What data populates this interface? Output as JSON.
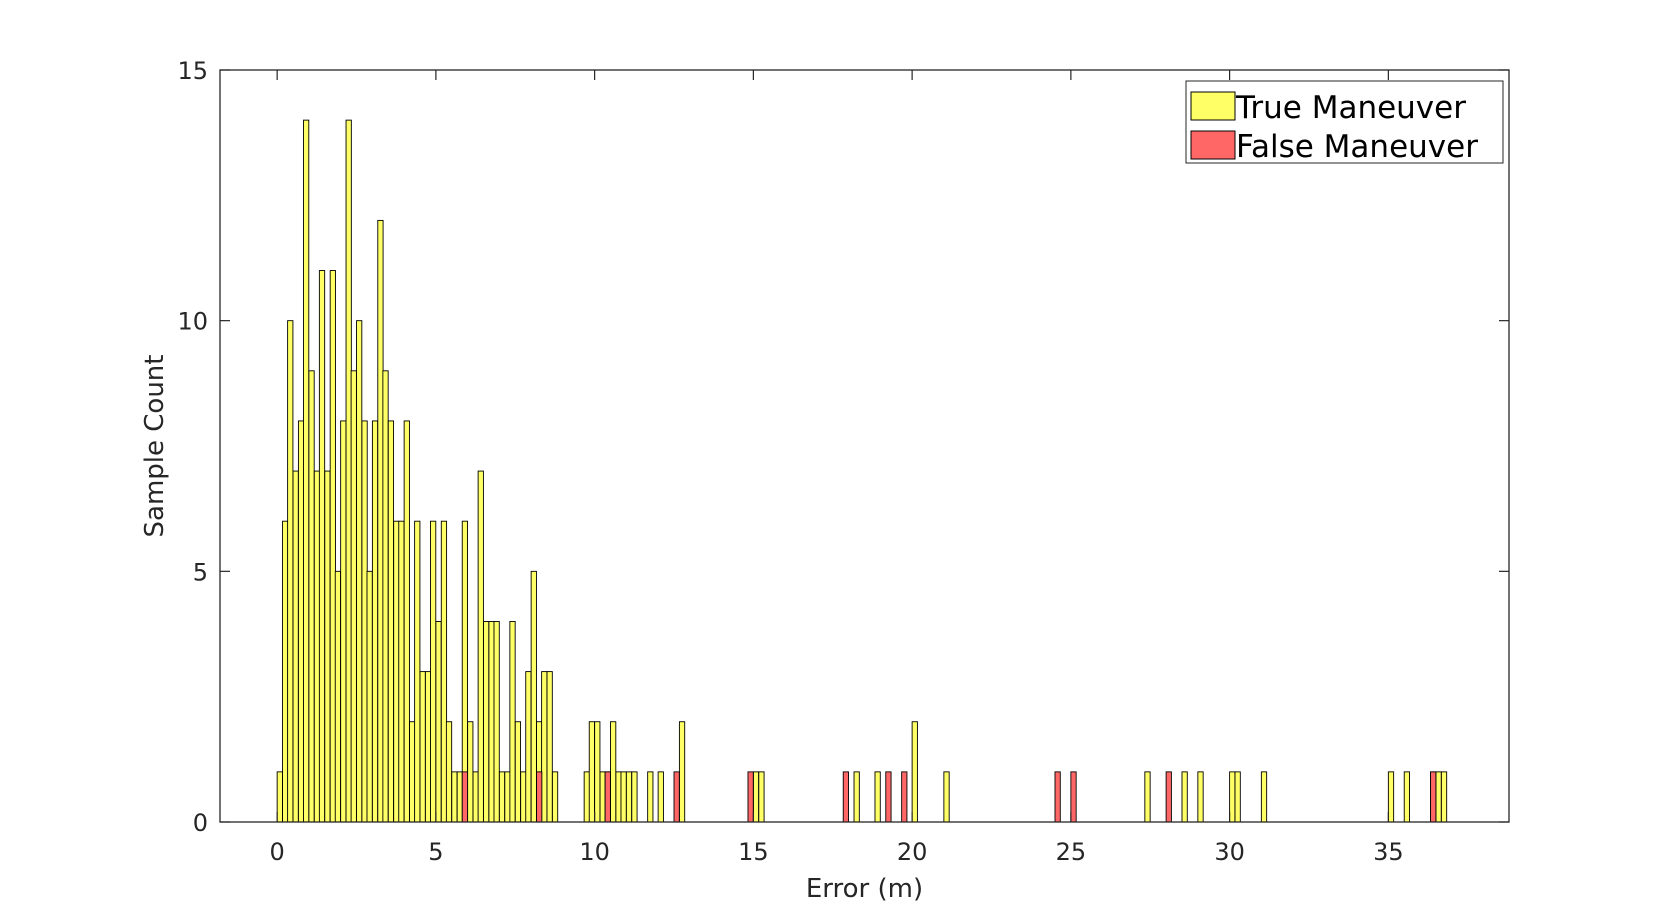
{
  "chart_data": {
    "type": "bar",
    "subtype": "overlaid-histogram",
    "xlabel": "Error (m)",
    "ylabel": "Sample Count",
    "xlim": [
      -1.8,
      38.8
    ],
    "ylim": [
      0,
      15
    ],
    "xticks": [
      0,
      5,
      10,
      15,
      20,
      25,
      30,
      35
    ],
    "yticks": [
      0,
      5,
      10,
      15
    ],
    "bin_width": 0.167,
    "grid": false,
    "legend_position": "top-right",
    "series": [
      {
        "name": "True Maneuver",
        "color": "#ffff66",
        "bins": [
          [
            0.0,
            1
          ],
          [
            0.17,
            6
          ],
          [
            0.33,
            10
          ],
          [
            0.5,
            7
          ],
          [
            0.67,
            8
          ],
          [
            0.83,
            14
          ],
          [
            1.0,
            9
          ],
          [
            1.17,
            7
          ],
          [
            1.33,
            11
          ],
          [
            1.5,
            7
          ],
          [
            1.67,
            11
          ],
          [
            1.83,
            5
          ],
          [
            2.0,
            8
          ],
          [
            2.17,
            14
          ],
          [
            2.33,
            9
          ],
          [
            2.5,
            10
          ],
          [
            2.67,
            8
          ],
          [
            2.83,
            5
          ],
          [
            3.0,
            8
          ],
          [
            3.17,
            12
          ],
          [
            3.33,
            9
          ],
          [
            3.5,
            8
          ],
          [
            3.67,
            6
          ],
          [
            3.83,
            6
          ],
          [
            4.0,
            8
          ],
          [
            4.17,
            2
          ],
          [
            4.33,
            6
          ],
          [
            4.5,
            3
          ],
          [
            4.67,
            3
          ],
          [
            4.83,
            6
          ],
          [
            5.0,
            4
          ],
          [
            5.17,
            6
          ],
          [
            5.33,
            2
          ],
          [
            5.5,
            1
          ],
          [
            5.67,
            1
          ],
          [
            5.83,
            6
          ],
          [
            6.0,
            2
          ],
          [
            6.17,
            1
          ],
          [
            6.33,
            7
          ],
          [
            6.5,
            4
          ],
          [
            6.67,
            4
          ],
          [
            6.83,
            4
          ],
          [
            7.0,
            1
          ],
          [
            7.17,
            1
          ],
          [
            7.33,
            4
          ],
          [
            7.5,
            2
          ],
          [
            7.67,
            1
          ],
          [
            7.83,
            3
          ],
          [
            8.0,
            5
          ],
          [
            8.17,
            2
          ],
          [
            8.33,
            3
          ],
          [
            8.5,
            3
          ],
          [
            8.67,
            1
          ],
          [
            9.67,
            1
          ],
          [
            9.83,
            2
          ],
          [
            10.0,
            2
          ],
          [
            10.17,
            1
          ],
          [
            10.33,
            1
          ],
          [
            10.5,
            2
          ],
          [
            10.67,
            1
          ],
          [
            10.83,
            1
          ],
          [
            11.0,
            1
          ],
          [
            11.17,
            1
          ],
          [
            11.67,
            1
          ],
          [
            12.0,
            1
          ],
          [
            12.67,
            2
          ],
          [
            15.0,
            1
          ],
          [
            15.17,
            1
          ],
          [
            18.17,
            1
          ],
          [
            18.83,
            1
          ],
          [
            20.0,
            2
          ],
          [
            21.0,
            1
          ],
          [
            27.33,
            1
          ],
          [
            28.5,
            1
          ],
          [
            29.0,
            1
          ],
          [
            30.0,
            1
          ],
          [
            30.17,
            1
          ],
          [
            31.0,
            1
          ],
          [
            35.0,
            1
          ],
          [
            35.5,
            1
          ],
          [
            36.33,
            1
          ],
          [
            36.5,
            1
          ],
          [
            36.67,
            1
          ]
        ]
      },
      {
        "name": "False Maneuver",
        "color": "#ff6666",
        "bins": [
          [
            5.83,
            1
          ],
          [
            8.17,
            1
          ],
          [
            10.33,
            1
          ],
          [
            12.5,
            1
          ],
          [
            14.83,
            1
          ],
          [
            17.83,
            1
          ],
          [
            19.17,
            1
          ],
          [
            19.67,
            1
          ],
          [
            24.5,
            1
          ],
          [
            25.0,
            1
          ],
          [
            28.0,
            1
          ],
          [
            36.33,
            1
          ]
        ]
      }
    ]
  }
}
